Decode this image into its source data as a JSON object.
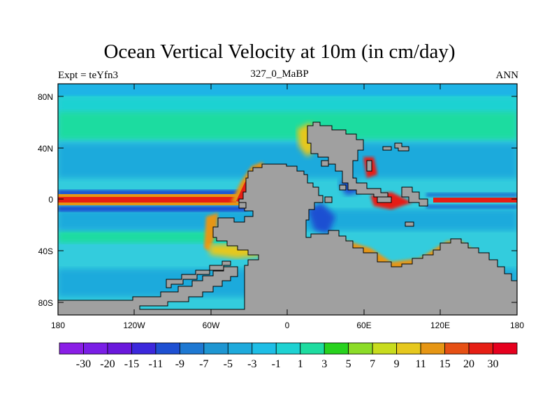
{
  "title": "Ocean Vertical Velocity at 10m (in cm/day)",
  "left_string": "Expt = teYfn3",
  "center_string": "327_0_MaBP",
  "right_string": "ANN",
  "map": {
    "ocean_color": "#33ccdd",
    "land_color": "#a0a0a0",
    "lat_labels": [
      "80N",
      "40N",
      "0",
      "40S",
      "80S"
    ],
    "lon_labels": [
      "180",
      "120W",
      "60W",
      "0",
      "60E",
      "120E",
      "180"
    ]
  },
  "colorbar": {
    "labels": [
      "-30",
      "-20",
      "-15",
      "-11",
      "-9",
      "-7",
      "-5",
      "-3",
      "-1",
      "1",
      "3",
      "5",
      "7",
      "9",
      "11",
      "15",
      "20",
      "30"
    ],
    "colors": [
      "#8a1ee6",
      "#7a1ee6",
      "#6a18dc",
      "#3c28dc",
      "#1e50d2",
      "#1e78d2",
      "#1e96d2",
      "#1eaadc",
      "#1ebee6",
      "#1ed2d2",
      "#1edca0",
      "#28d21e",
      "#8cdc28",
      "#c8dc1e",
      "#e6c81e",
      "#e69614",
      "#e65014",
      "#e61e14",
      "#e6001e"
    ]
  }
}
